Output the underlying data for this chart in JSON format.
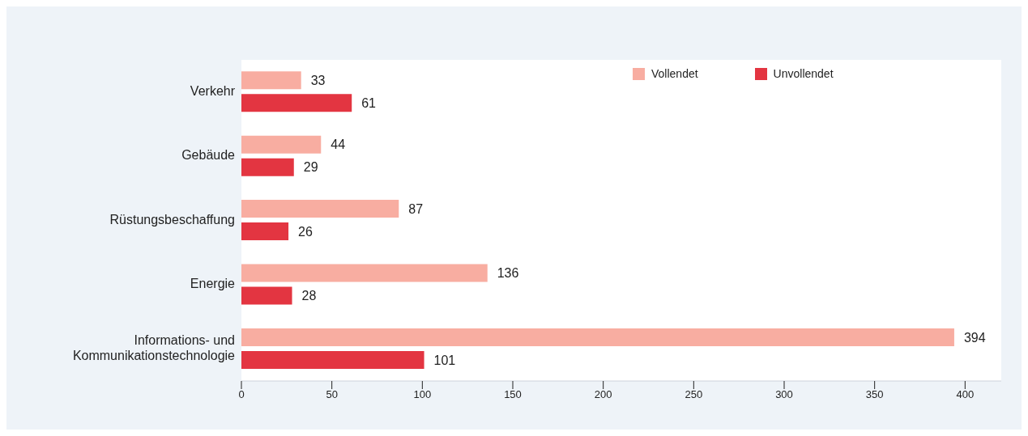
{
  "chart_data": {
    "type": "bar",
    "orientation": "horizontal",
    "categories": [
      "Verkehr",
      "Gebäude",
      "Rüstungsbeschaffung",
      "Energie",
      "Informations- und Kommunikationstechnologie"
    ],
    "series": [
      {
        "name": "Vollendet",
        "color": "#f8ada1",
        "values": [
          33,
          44,
          87,
          136,
          394
        ]
      },
      {
        "name": "Unvollendet",
        "color": "#e33541",
        "values": [
          61,
          29,
          26,
          28,
          101
        ]
      }
    ],
    "xlim": [
      0,
      420
    ],
    "xticks": [
      0,
      50,
      100,
      150,
      200,
      250,
      300,
      350,
      400
    ],
    "data_labels": true,
    "legend": "top right"
  }
}
